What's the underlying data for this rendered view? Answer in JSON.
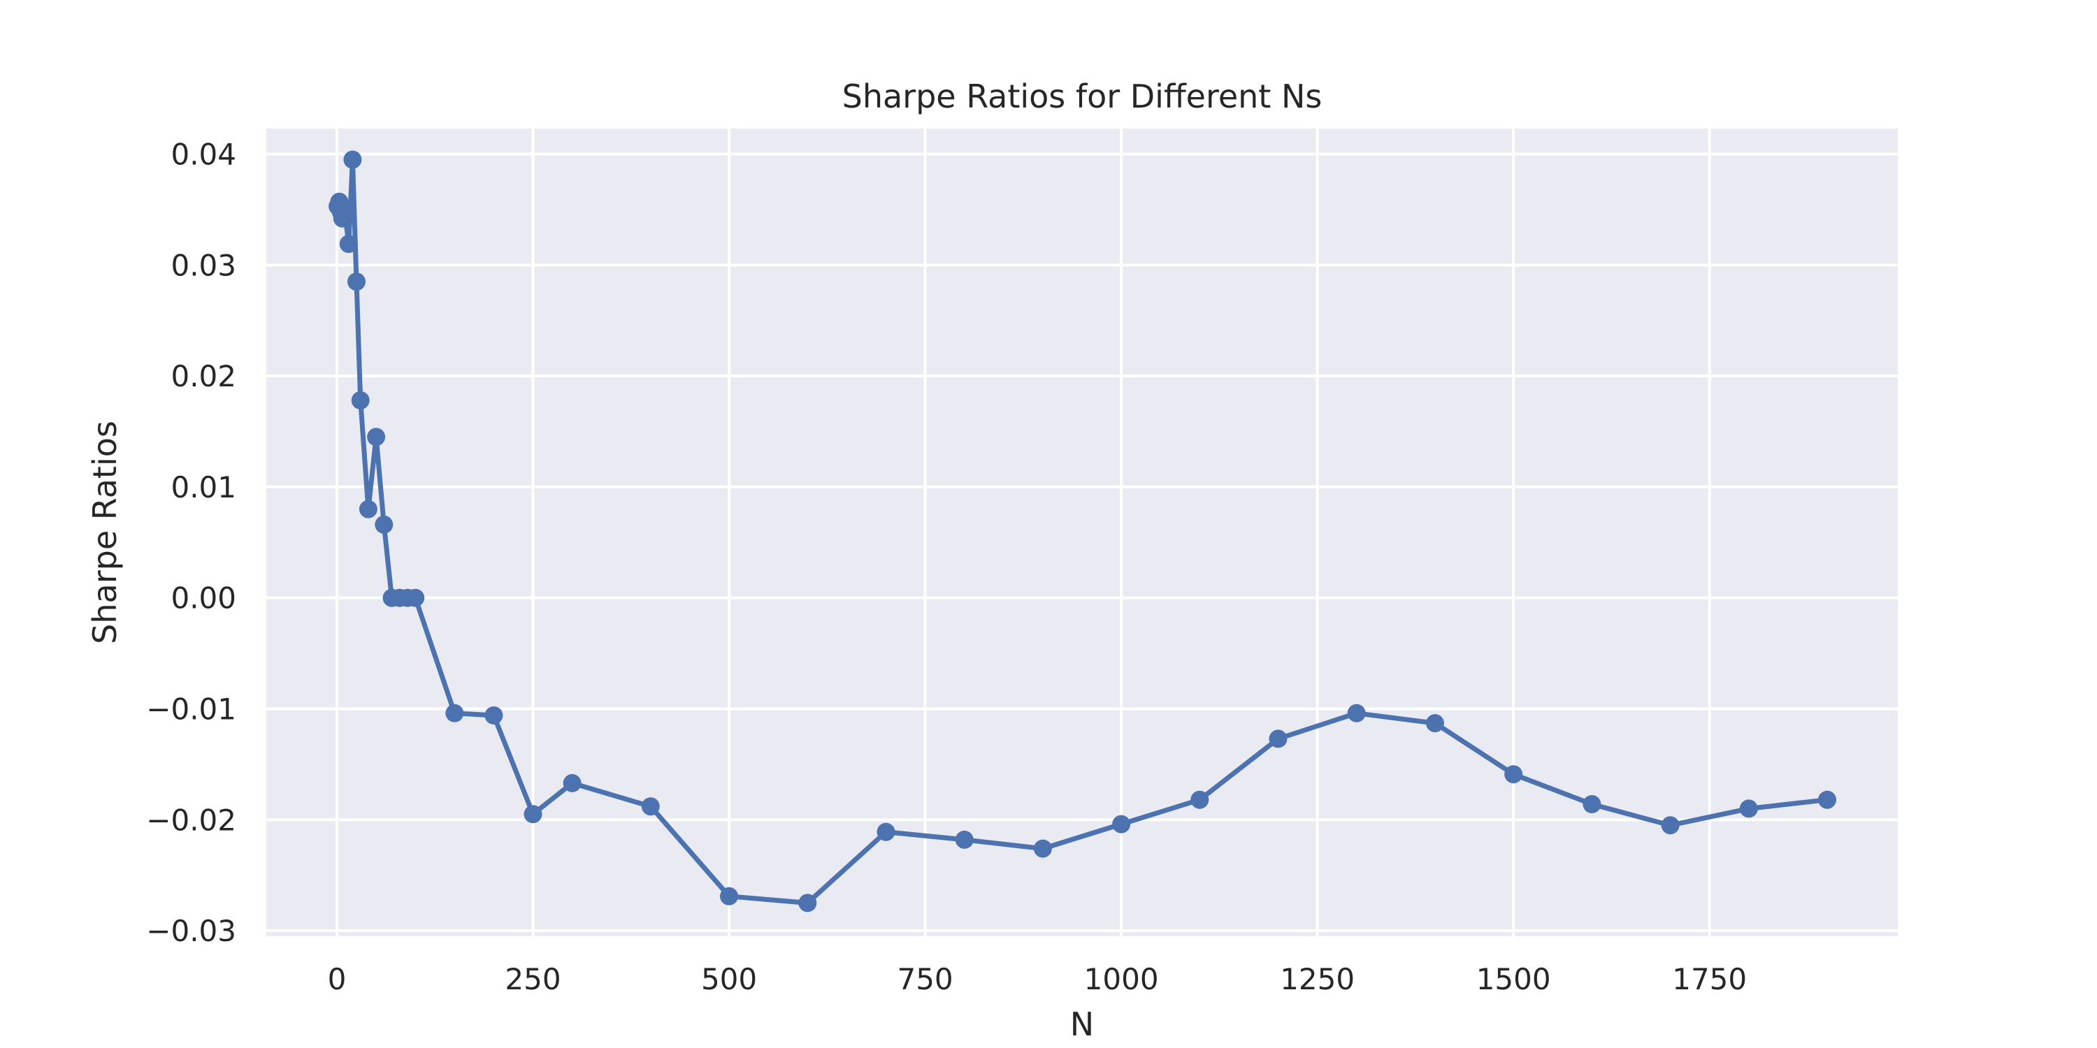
{
  "chart_data": {
    "type": "line",
    "title": "Sharpe Ratios for Different Ns",
    "xlabel": "N",
    "ylabel": "Sharpe Ratios",
    "xlim": [
      -90,
      1990
    ],
    "ylim": [
      -0.0305,
      0.0423
    ],
    "x_ticks": [
      0,
      250,
      500,
      750,
      1000,
      1250,
      1500,
      1750
    ],
    "x_tick_labels": [
      "0",
      "250",
      "500",
      "750",
      "1000",
      "1250",
      "1500",
      "1750"
    ],
    "y_ticks": [
      0.04,
      0.03,
      0.02,
      0.01,
      0.0,
      -0.01,
      -0.02,
      -0.03
    ],
    "y_tick_labels": [
      "0.04",
      "0.03",
      "0.02",
      "0.01",
      "0.00",
      "−0.01",
      "−0.02",
      "−0.03"
    ],
    "grid": true,
    "marker": "circle",
    "series": [
      {
        "color": "#4c72b0",
        "x": [
          1,
          3,
          5,
          7,
          10,
          15,
          20,
          25,
          30,
          40,
          50,
          60,
          70,
          80,
          90,
          100,
          150,
          200,
          250,
          300,
          400,
          500,
          600,
          700,
          800,
          900,
          1000,
          1100,
          1200,
          1300,
          1400,
          1500,
          1600,
          1700,
          1800,
          1900
        ],
        "y": [
          0.0353,
          0.0357,
          0.0348,
          0.0342,
          0.0348,
          0.0319,
          0.0395,
          0.0285,
          0.0178,
          0.008,
          0.0145,
          0.0066,
          0.0,
          0.0,
          0.0,
          0.0,
          -0.0104,
          -0.0106,
          -0.0195,
          -0.0167,
          -0.0188,
          -0.0269,
          -0.0275,
          -0.0211,
          -0.0218,
          -0.0226,
          -0.0204,
          -0.0182,
          -0.0127,
          -0.0104,
          -0.0113,
          -0.0159,
          -0.0186,
          -0.0205,
          -0.019,
          -0.0182
        ]
      }
    ]
  }
}
